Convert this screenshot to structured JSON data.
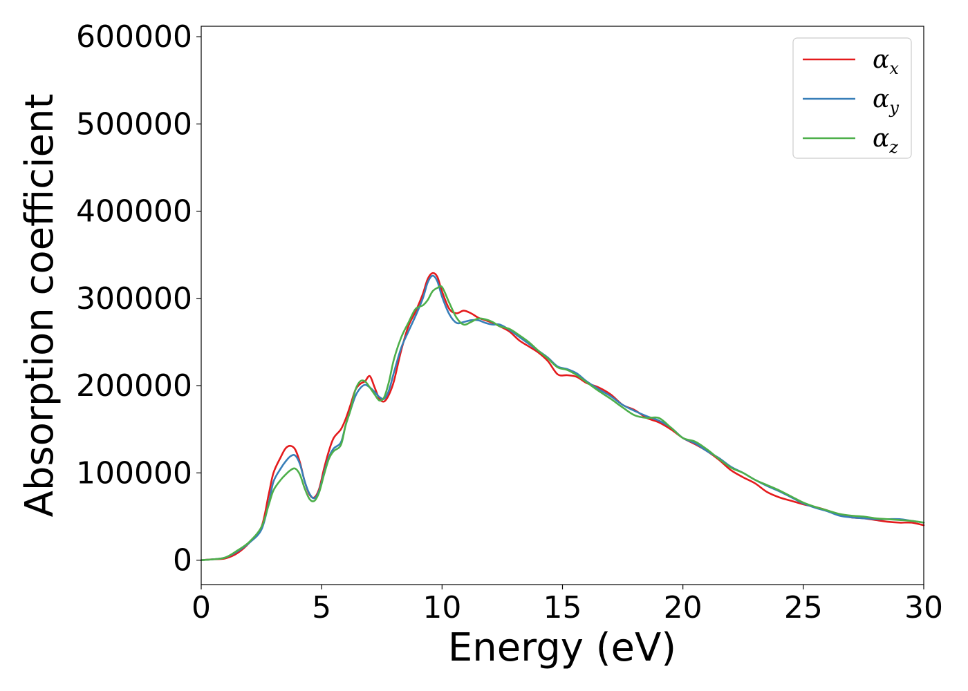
{
  "chart_data": {
    "type": "line",
    "xlabel": "Energy (eV)",
    "ylabel": "Absorption coefficient",
    "xlim": [
      0,
      30
    ],
    "ylim": [
      -28000,
      612000
    ],
    "xticks": [
      0,
      5,
      10,
      15,
      20,
      25,
      30
    ],
    "yticks": [
      0,
      100000,
      200000,
      300000,
      400000,
      500000,
      600000
    ],
    "grid": false,
    "legend_position": "top-right",
    "series": [
      {
        "name": "α_x",
        "legend_base": "α",
        "legend_sub": "x",
        "color": "#e41a1c",
        "x": [
          0,
          0.5,
          1.0,
          1.5,
          2.0,
          2.5,
          2.8,
          3.0,
          3.3,
          3.5,
          3.7,
          3.9,
          4.1,
          4.3,
          4.5,
          4.7,
          4.9,
          5.1,
          5.3,
          5.5,
          5.8,
          6.0,
          6.2,
          6.4,
          6.6,
          6.8,
          7.0,
          7.2,
          7.4,
          7.6,
          7.8,
          8.0,
          8.3,
          8.6,
          8.9,
          9.2,
          9.4,
          9.6,
          9.8,
          10.0,
          10.3,
          10.6,
          10.9,
          11.2,
          11.5,
          11.8,
          12.1,
          12.4,
          12.8,
          13.2,
          13.6,
          14.0,
          14.4,
          14.8,
          15.2,
          15.6,
          16.0,
          16.5,
          17.0,
          17.5,
          18.0,
          18.5,
          19.0,
          19.5,
          20.0,
          20.5,
          21.0,
          21.5,
          22.0,
          22.5,
          23.0,
          23.5,
          24.0,
          24.5,
          25.0,
          25.5,
          26.0,
          26.5,
          27.0,
          27.5,
          28.0,
          28.5,
          29.0,
          29.5,
          30.0
        ],
        "values": [
          0,
          1000,
          2000,
          8000,
          20000,
          38000,
          75000,
          100000,
          118000,
          128000,
          131000,
          127000,
          112000,
          90000,
          75000,
          72000,
          82000,
          105000,
          125000,
          140000,
          150000,
          162000,
          178000,
          195000,
          202000,
          205000,
          211000,
          198000,
          185000,
          182000,
          190000,
          205000,
          240000,
          268000,
          285000,
          305000,
          322000,
          329000,
          325000,
          308000,
          288000,
          283000,
          286000,
          283000,
          278000,
          275000,
          272000,
          268000,
          262000,
          252000,
          245000,
          238000,
          228000,
          213000,
          212000,
          210000,
          203000,
          198000,
          190000,
          178000,
          172000,
          163000,
          158000,
          150000,
          140000,
          133000,
          125000,
          115000,
          103000,
          95000,
          88000,
          78000,
          72000,
          68000,
          64000,
          61000,
          57000,
          52000,
          49000,
          48000,
          46000,
          44000,
          43000,
          43000,
          40000
        ]
      },
      {
        "name": "α_y",
        "legend_base": "α",
        "legend_sub": "y",
        "color": "#377eb8",
        "x": [
          0,
          0.5,
          1.0,
          1.5,
          2.0,
          2.5,
          2.8,
          3.0,
          3.3,
          3.5,
          3.7,
          3.9,
          4.1,
          4.3,
          4.5,
          4.7,
          4.9,
          5.1,
          5.3,
          5.5,
          5.8,
          6.0,
          6.2,
          6.4,
          6.6,
          6.8,
          7.0,
          7.2,
          7.4,
          7.6,
          7.8,
          8.0,
          8.3,
          8.6,
          8.9,
          9.2,
          9.4,
          9.6,
          9.8,
          10.0,
          10.3,
          10.6,
          10.9,
          11.2,
          11.5,
          11.8,
          12.1,
          12.4,
          12.8,
          13.2,
          13.6,
          14.0,
          14.4,
          14.8,
          15.2,
          15.6,
          16.0,
          16.5,
          17.0,
          17.5,
          18.0,
          18.5,
          19.0,
          19.5,
          20.0,
          20.5,
          21.0,
          21.5,
          22.0,
          22.5,
          23.0,
          23.5,
          24.0,
          24.5,
          25.0,
          25.5,
          26.0,
          26.5,
          27.0,
          27.5,
          28.0,
          28.5,
          29.0,
          29.5,
          30.0
        ],
        "values": [
          0,
          1000,
          3000,
          10000,
          20000,
          35000,
          65000,
          90000,
          105000,
          113000,
          119000,
          120000,
          110000,
          90000,
          76000,
          71000,
          80000,
          100000,
          118000,
          128000,
          135000,
          155000,
          172000,
          188000,
          197000,
          201000,
          198000,
          193000,
          187000,
          185000,
          195000,
          215000,
          243000,
          262000,
          280000,
          300000,
          318000,
          326000,
          320000,
          302000,
          282000,
          272000,
          273000,
          275000,
          275000,
          272000,
          270000,
          270000,
          264000,
          256000,
          248000,
          240000,
          232000,
          222000,
          219000,
          214000,
          205000,
          196000,
          188000,
          178000,
          171000,
          165000,
          160000,
          152000,
          140000,
          134000,
          125000,
          117000,
          107000,
          100000,
          92000,
          85000,
          79000,
          72000,
          65000,
          60000,
          56000,
          51000,
          49000,
          48000,
          47000,
          47000,
          47000,
          45000,
          43000
        ]
      },
      {
        "name": "α_z",
        "legend_base": "α",
        "legend_sub": "z",
        "color": "#4daf4a",
        "x": [
          0,
          0.5,
          1.0,
          1.5,
          2.0,
          2.5,
          2.8,
          3.0,
          3.3,
          3.5,
          3.7,
          3.9,
          4.1,
          4.3,
          4.5,
          4.7,
          4.9,
          5.1,
          5.3,
          5.5,
          5.8,
          6.0,
          6.2,
          6.4,
          6.6,
          6.8,
          7.0,
          7.2,
          7.4,
          7.6,
          7.8,
          8.0,
          8.3,
          8.6,
          8.9,
          9.2,
          9.4,
          9.6,
          9.8,
          10.0,
          10.3,
          10.6,
          10.9,
          11.2,
          11.5,
          11.8,
          12.1,
          12.4,
          12.8,
          13.2,
          13.6,
          14.0,
          14.4,
          14.8,
          15.2,
          15.6,
          16.0,
          16.5,
          17.0,
          17.5,
          18.0,
          18.5,
          19.0,
          19.5,
          20.0,
          20.5,
          21.0,
          21.5,
          22.0,
          22.5,
          23.0,
          23.5,
          24.0,
          24.5,
          25.0,
          25.5,
          26.0,
          26.5,
          27.0,
          27.5,
          28.0,
          28.5,
          29.0,
          29.5,
          30.0
        ],
        "values": [
          0,
          1000,
          3000,
          11000,
          21000,
          38000,
          63000,
          80000,
          92000,
          98000,
          103000,
          105000,
          98000,
          82000,
          70000,
          68000,
          78000,
          98000,
          116000,
          125000,
          132000,
          155000,
          172000,
          195000,
          205000,
          205000,
          198000,
          190000,
          183000,
          187000,
          205000,
          230000,
          255000,
          272000,
          288000,
          292000,
          298000,
          308000,
          312000,
          313000,
          295000,
          278000,
          270000,
          273000,
          277000,
          276000,
          273000,
          268000,
          265000,
          258000,
          250000,
          240000,
          231000,
          221000,
          218000,
          212000,
          204000,
          194000,
          185000,
          175000,
          166000,
          163000,
          163000,
          152000,
          140000,
          136000,
          127000,
          116000,
          106000,
          100000,
          92000,
          86000,
          80000,
          73000,
          66000,
          61000,
          57000,
          53000,
          51000,
          50000,
          48000,
          47000,
          46000,
          45000,
          43000
        ]
      }
    ]
  }
}
